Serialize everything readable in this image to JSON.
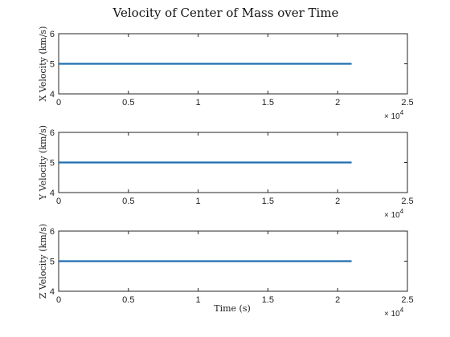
{
  "figure": {
    "title": "Velocity of Center of Mass over Time",
    "xlabel": "Time (s)"
  },
  "colors": {
    "series": "#1f6fb0",
    "axes": "#262626",
    "background": "#ffffff"
  },
  "chart_data": [
    {
      "type": "line",
      "ylabel": "X Velocity (km/s)",
      "xlim": [
        0,
        25000
      ],
      "ylim": [
        4,
        6
      ],
      "xticks": [
        0,
        5000,
        10000,
        15000,
        20000,
        25000
      ],
      "xtick_labels": [
        "0",
        "0.5",
        "1",
        "1.5",
        "2",
        "2.5"
      ],
      "yticks": [
        4,
        5,
        6
      ],
      "ytick_labels": [
        "4",
        "5",
        "6"
      ],
      "x_exponent_base": "× 10",
      "x_exponent_power": "4",
      "grid": false,
      "series": [
        {
          "x": [
            0,
            21000
          ],
          "y": [
            5,
            5
          ]
        }
      ]
    },
    {
      "type": "line",
      "ylabel": "Y Velocity (km/s)",
      "xlim": [
        0,
        25000
      ],
      "ylim": [
        4,
        6
      ],
      "xticks": [
        0,
        5000,
        10000,
        15000,
        20000,
        25000
      ],
      "xtick_labels": [
        "0",
        "0.5",
        "1",
        "1.5",
        "2",
        "2.5"
      ],
      "yticks": [
        4,
        5,
        6
      ],
      "ytick_labels": [
        "4",
        "5",
        "6"
      ],
      "x_exponent_base": "× 10",
      "x_exponent_power": "4",
      "grid": false,
      "series": [
        {
          "x": [
            0,
            21000
          ],
          "y": [
            5,
            5
          ]
        }
      ]
    },
    {
      "type": "line",
      "ylabel": "Z Velocity (km/s)",
      "xlim": [
        0,
        25000
      ],
      "ylim": [
        4,
        6
      ],
      "xticks": [
        0,
        5000,
        10000,
        15000,
        20000,
        25000
      ],
      "xtick_labels": [
        "0",
        "0.5",
        "1",
        "1.5",
        "2",
        "2.5"
      ],
      "yticks": [
        4,
        5,
        6
      ],
      "ytick_labels": [
        "4",
        "5",
        "6"
      ],
      "x_exponent_base": "× 10",
      "x_exponent_power": "4",
      "grid": false,
      "series": [
        {
          "x": [
            0,
            21000
          ],
          "y": [
            5,
            5
          ]
        }
      ]
    }
  ]
}
